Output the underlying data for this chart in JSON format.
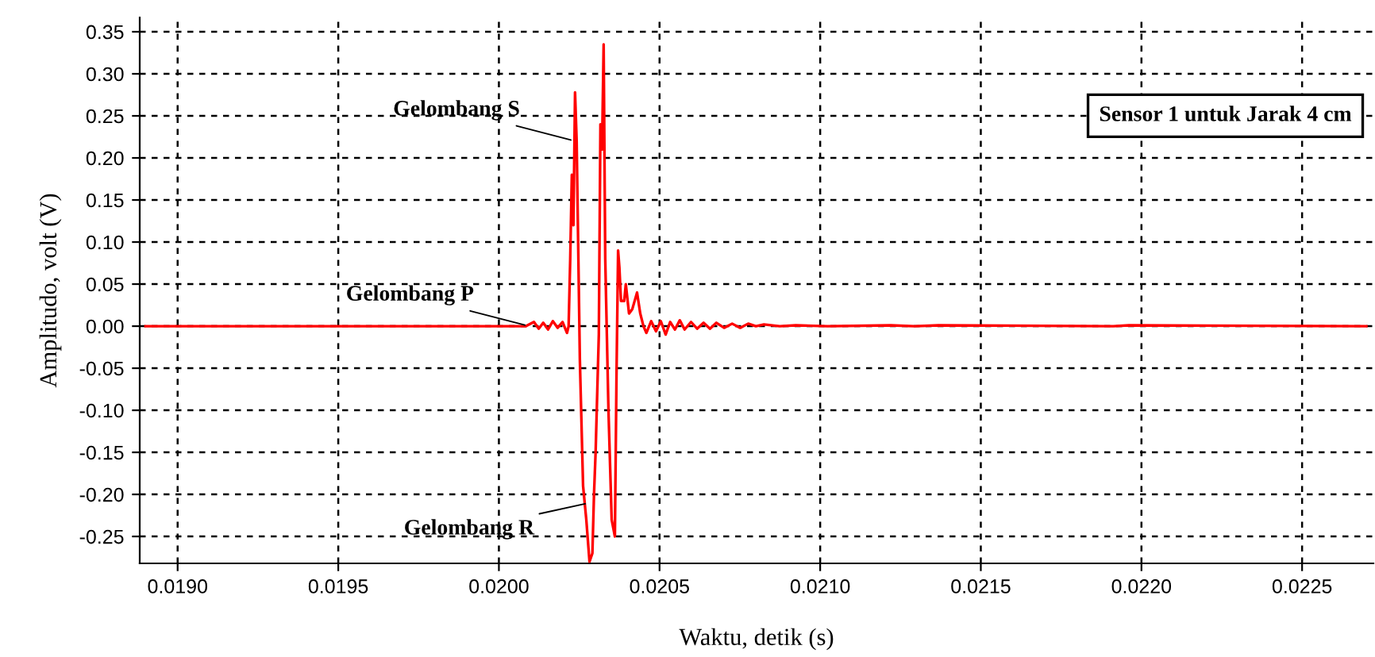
{
  "chart_data": {
    "type": "line",
    "xlabel": "Waktu, detik (s)",
    "ylabel": "Amplitudo, volt (V)",
    "xlim": [
      0.018882,
      0.022722
    ],
    "ylim": [
      -0.282,
      0.367
    ],
    "xticks": [
      {
        "value": 0.019,
        "label": "0.0190"
      },
      {
        "value": 0.0195,
        "label": "0.0195"
      },
      {
        "value": 0.02,
        "label": "0.0200"
      },
      {
        "value": 0.0205,
        "label": "0.0205"
      },
      {
        "value": 0.021,
        "label": "0.0210"
      },
      {
        "value": 0.0215,
        "label": "0.0215"
      },
      {
        "value": 0.022,
        "label": "0.0220"
      },
      {
        "value": 0.0225,
        "label": "0.0225"
      }
    ],
    "yticks": [
      {
        "value": -0.25,
        "label": "-0.25"
      },
      {
        "value": -0.2,
        "label": "-0.20"
      },
      {
        "value": -0.15,
        "label": "-0.15"
      },
      {
        "value": -0.1,
        "label": "-0.10"
      },
      {
        "value": -0.05,
        "label": "-0.05"
      },
      {
        "value": 0,
        "label": "0.00"
      },
      {
        "value": 0.05,
        "label": "0.05"
      },
      {
        "value": 0.1,
        "label": "0.10"
      },
      {
        "value": 0.15,
        "label": "0.15"
      },
      {
        "value": 0.2,
        "label": "0.20"
      },
      {
        "value": 0.25,
        "label": "0.25"
      },
      {
        "value": 0.3,
        "label": "0.30"
      },
      {
        "value": 0.35,
        "label": "0.35"
      }
    ],
    "grid": true,
    "marker": "none",
    "line_style": "solid",
    "series": [
      {
        "color": "#ff0000",
        "x": [
          0.0189,
          0.020084,
          0.020109,
          0.020124,
          0.020138,
          0.020153,
          0.020168,
          0.020183,
          0.020198,
          0.020212,
          0.020217,
          0.020222,
          0.020227,
          0.020232,
          0.020237,
          0.020242,
          0.020252,
          0.020262,
          0.020272,
          0.020282,
          0.020291,
          0.020296,
          0.020301,
          0.020311,
          0.020316,
          0.020321,
          0.020326,
          0.020331,
          0.020341,
          0.020351,
          0.020361,
          0.020366,
          0.020371,
          0.020375,
          0.02038,
          0.02039,
          0.020395,
          0.020405,
          0.020415,
          0.02043,
          0.02044,
          0.02045,
          0.020459,
          0.020474,
          0.020489,
          0.020504,
          0.020519,
          0.020533,
          0.020548,
          0.020563,
          0.020578,
          0.020598,
          0.020617,
          0.020637,
          0.020657,
          0.020677,
          0.020701,
          0.020726,
          0.020751,
          0.020776,
          0.0208,
          0.020825,
          0.020874,
          0.020924,
          0.021023,
          0.02122,
          0.021294,
          0.021368,
          0.021912,
          0.021961,
          0.0227
        ],
        "values": [
          0,
          0,
          0.005,
          -0.003,
          0.004,
          -0.004,
          0.006,
          -0.002,
          0.005,
          -0.008,
          0,
          0.08,
          0.18,
          0.12,
          0.278,
          0.22,
          -0.04,
          -0.19,
          -0.23,
          -0.28,
          -0.27,
          -0.2,
          -0.15,
          -0.01,
          0.24,
          0.21,
          0.335,
          0.08,
          -0.1,
          -0.23,
          -0.25,
          -0.06,
          0.09,
          0.07,
          0.03,
          0.03,
          0.05,
          0.015,
          0.02,
          0.04,
          0.015,
          0,
          -0.008,
          0.006,
          -0.006,
          0.006,
          -0.01,
          0.005,
          -0.004,
          0.007,
          -0.004,
          0.005,
          -0.003,
          0.004,
          -0.003,
          0.004,
          -0.002,
          0.003,
          -0.002,
          0.003,
          0,
          0.002,
          0,
          0.001,
          0,
          0.001,
          0,
          0.001,
          0,
          0.001,
          0
        ]
      }
    ],
    "annotations": [
      {
        "text": "Gelombang S",
        "x": 0.020237,
        "y": 0.22
      },
      {
        "text": "Gelombang P",
        "x": 0.020094,
        "y": 0.0
      },
      {
        "text": "Gelombang R",
        "x": 0.020282,
        "y": -0.21
      },
      "Sensor 1 untuk Jarak 4 cm"
    ]
  }
}
